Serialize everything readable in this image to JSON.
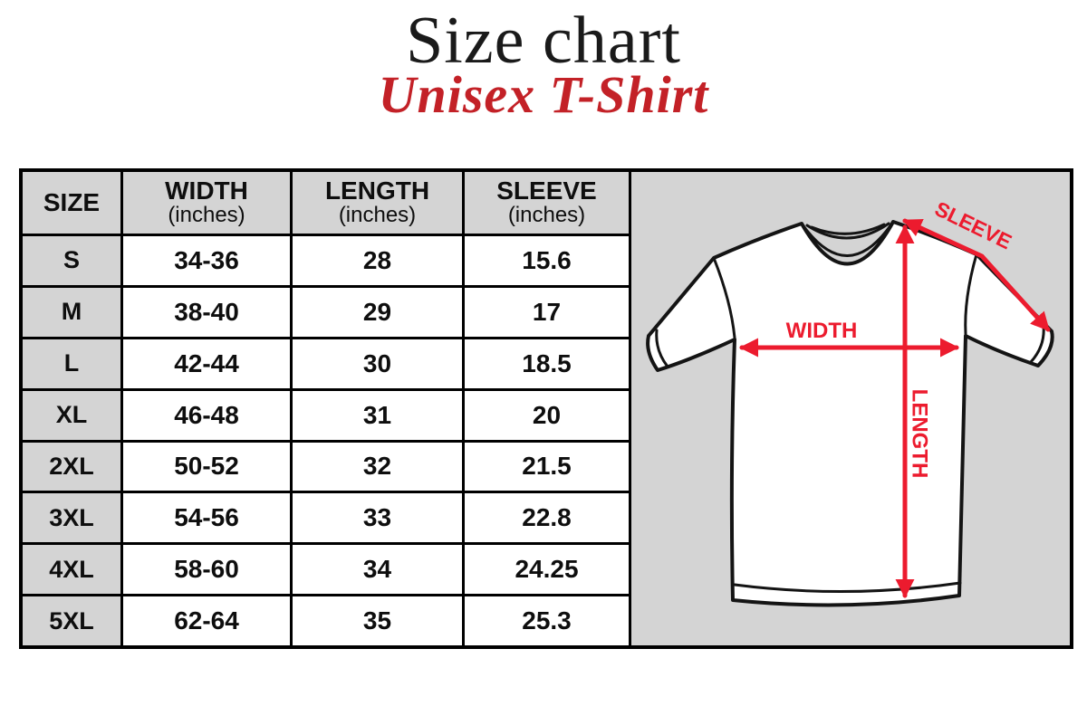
{
  "header": {
    "title": "Size chart",
    "subtitle": "Unisex T-Shirt",
    "title_color": "#1a1a1a",
    "subtitle_color": "#c32127"
  },
  "table": {
    "columns": [
      {
        "label": "SIZE",
        "sublabel": ""
      },
      {
        "label": "WIDTH",
        "sublabel": "(inches)"
      },
      {
        "label": "LENGTH",
        "sublabel": "(inches)"
      },
      {
        "label": "SLEEVE",
        "sublabel": "(inches)"
      }
    ],
    "rows": [
      {
        "size": "S",
        "width": "34-36",
        "length": "28",
        "sleeve": "15.6"
      },
      {
        "size": "M",
        "width": "38-40",
        "length": "29",
        "sleeve": "17"
      },
      {
        "size": "L",
        "width": "42-44",
        "length": "30",
        "sleeve": "18.5"
      },
      {
        "size": "XL",
        "width": "46-48",
        "length": "31",
        "sleeve": "20"
      },
      {
        "size": "2XL",
        "width": "50-52",
        "length": "32",
        "sleeve": "21.5"
      },
      {
        "size": "3XL",
        "width": "54-56",
        "length": "33",
        "sleeve": "22.8"
      },
      {
        "size": "4XL",
        "width": "58-60",
        "length": "34",
        "sleeve": "24.25"
      },
      {
        "size": "5XL",
        "width": "62-64",
        "length": "35",
        "sleeve": "25.3"
      }
    ],
    "header_bg": "#d4d4d4",
    "cell_bg": "#ffffff",
    "border_color": "#000000"
  },
  "diagram": {
    "panel_bg": "#d4d4d4",
    "arrow_color": "#ec1b2e",
    "shirt_fill": "#ffffff",
    "shirt_outline": "#141414",
    "labels": {
      "width": "WIDTH",
      "length": "LENGTH",
      "sleeve": "SLEEVE"
    }
  }
}
